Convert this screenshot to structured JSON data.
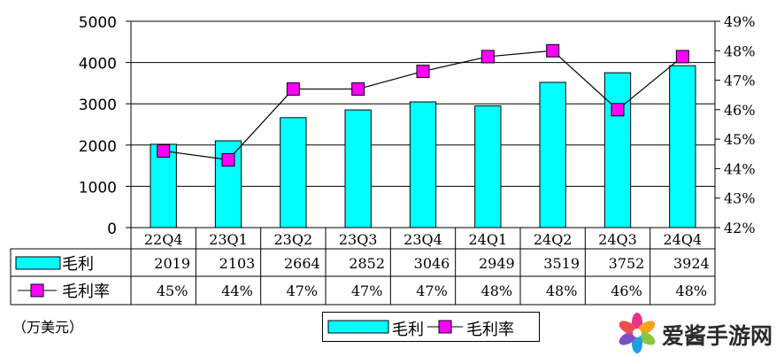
{
  "chart_data": {
    "type": "bar",
    "categories": [
      "22Q4",
      "23Q1",
      "23Q2",
      "23Q3",
      "23Q4",
      "24Q1",
      "24Q2",
      "24Q3",
      "24Q4"
    ],
    "series": [
      {
        "name": "毛利",
        "type": "bar",
        "axis": "left",
        "color": "#00ffff",
        "values": [
          2019,
          2103,
          2664,
          2852,
          3046,
          2949,
          3519,
          3752,
          3924
        ]
      },
      {
        "name": "毛利率",
        "type": "line",
        "axis": "right",
        "color": "#ff00ff",
        "values": [
          44.6,
          44.3,
          46.7,
          46.7,
          47.3,
          47.8,
          48.0,
          46.0,
          47.8
        ]
      }
    ],
    "yleft": {
      "lim": [
        0,
        5000
      ],
      "ticks": [
        "0",
        "1000",
        "2000",
        "3000",
        "4000",
        "5000"
      ]
    },
    "yright": {
      "lim": [
        42,
        49
      ],
      "ticks": [
        "42%",
        "43%",
        "44%",
        "45%",
        "46%",
        "47%",
        "48%",
        "49%"
      ]
    },
    "grid": true,
    "data_table": {
      "rows": [
        {
          "label": "毛利",
          "values": [
            "2019",
            "2103",
            "2664",
            "2852",
            "3046",
            "2949",
            "3519",
            "3752",
            "3924"
          ]
        },
        {
          "label": "毛利率",
          "values": [
            "45%",
            "44%",
            "47%",
            "47%",
            "47%",
            "48%",
            "48%",
            "46%",
            "48%"
          ]
        }
      ]
    },
    "unit_note": "（万美元）",
    "legend": {
      "position": "bottom",
      "items": [
        "毛利",
        "毛利率"
      ]
    }
  },
  "watermark": {
    "text": "爱酱手游网"
  },
  "colors": {
    "bar": "#00ffff",
    "line_marker": "#ff00ff",
    "line": "#000000",
    "grid": "#000000"
  }
}
